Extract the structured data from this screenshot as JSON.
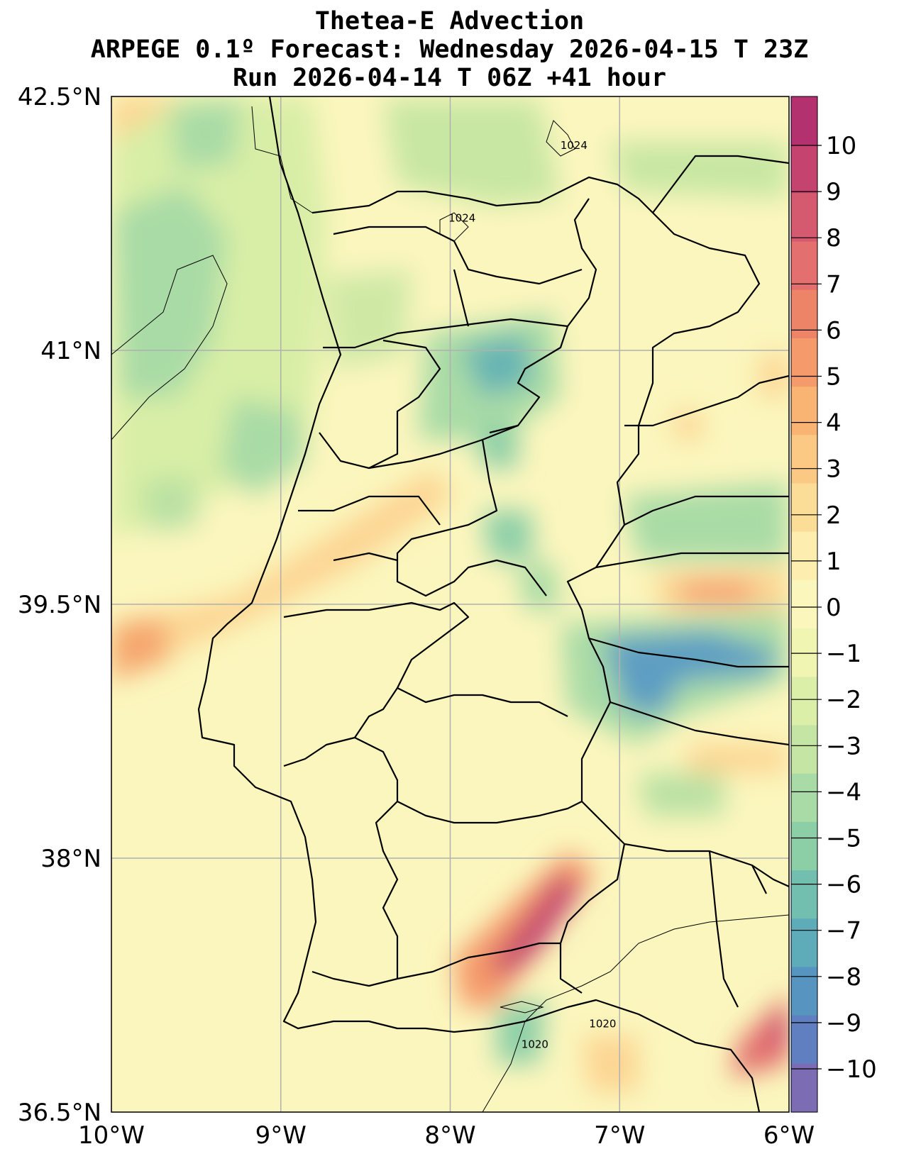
{
  "title": {
    "line1": "Thetea-E Advection",
    "line2": "ARPEGE 0.1º Forecast: Wednesday 2026-04-15 T 23Z",
    "line3": "Run 2026-04-14 T 06Z +41 hour"
  },
  "map": {
    "lon_range": [
      -10,
      -6
    ],
    "lat_range": [
      36.5,
      42.5
    ],
    "grid": true,
    "lon_ticks": [
      {
        "value": -10,
        "label": "10°W"
      },
      {
        "value": -9,
        "label": "9°W"
      },
      {
        "value": -8,
        "label": "8°W"
      },
      {
        "value": -7,
        "label": "7°W"
      },
      {
        "value": -6,
        "label": "6°W"
      }
    ],
    "lat_ticks": [
      {
        "value": 42.5,
        "label": "42.5°N"
      },
      {
        "value": 41,
        "label": "41°N"
      },
      {
        "value": 39.5,
        "label": "39.5°N"
      },
      {
        "value": 38,
        "label": "38°N"
      },
      {
        "value": 36.5,
        "label": "36.5°N"
      }
    ],
    "isobar_labels": [
      {
        "text": "1024",
        "lon": -7.27,
        "lat": 42.19
      },
      {
        "text": "1024",
        "lon": -7.93,
        "lat": 41.76
      },
      {
        "text": "1020",
        "lon": -7.1,
        "lat": 37.0
      },
      {
        "text": "1020",
        "lon": -7.5,
        "lat": 36.88
      }
    ]
  },
  "colorbar": {
    "ticks": [
      "10",
      "9",
      "8",
      "7",
      "6",
      "5",
      "4",
      "3",
      "2",
      "1",
      "0",
      "−1",
      "−2",
      "−3",
      "−4",
      "−5",
      "−6",
      "−7",
      "−8",
      "−9",
      "−10"
    ],
    "colors": [
      "#b2316e",
      "#c5446f",
      "#d65a6f",
      "#e3706e",
      "#ee8467",
      "#f59a6a",
      "#f9b474",
      "#fcc985",
      "#fcdd98",
      "#fdeeaf",
      "#fbf7bc",
      "#f0f6b2",
      "#dcefa8",
      "#c4e5a3",
      "#a8dba5",
      "#8ccfa7",
      "#72bfaf",
      "#5eabb9",
      "#5795c0",
      "#5f7fc0",
      "#7b6cb4"
    ]
  }
}
